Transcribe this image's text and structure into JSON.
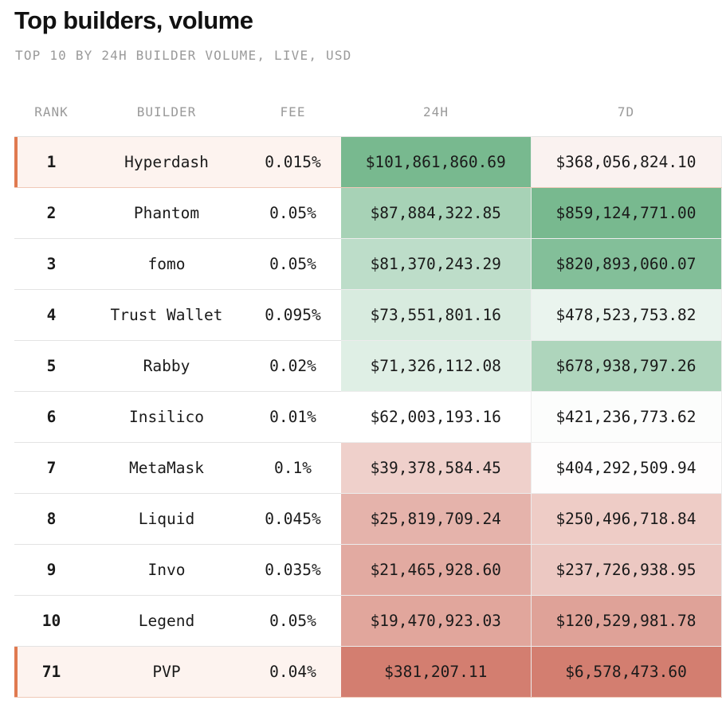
{
  "title": "Top builders, volume",
  "subtitle": "TOP 10 BY 24H BUILDER VOLUME, LIVE, USD",
  "columns": {
    "rank": "RANK",
    "builder": "BUILDER",
    "fee": "FEE",
    "vol24h": "24H",
    "vol7d": "7D"
  },
  "colors": {
    "high": "#78b98f",
    "mid": "#ffffff",
    "low": "#d37e70",
    "highlight_bg": "#fdf3ef",
    "highlight_accent": "#e07a50"
  },
  "chart_data": {
    "type": "table",
    "rows": [
      {
        "rank": "1",
        "builder": "Hyperdash",
        "fee": "0.015%",
        "vol24h": 101861860.69,
        "vol24h_label": "$101,861,860.69",
        "vol7d": 368056824.1,
        "vol7d_label": "$368,056,824.10",
        "highlight": true
      },
      {
        "rank": "2",
        "builder": "Phantom",
        "fee": "0.05%",
        "vol24h": 87884322.85,
        "vol24h_label": "$87,884,322.85",
        "vol7d": 859124771.0,
        "vol7d_label": "$859,124,771.00",
        "highlight": false
      },
      {
        "rank": "3",
        "builder": "fomo",
        "fee": "0.05%",
        "vol24h": 81370243.29,
        "vol24h_label": "$81,370,243.29",
        "vol7d": 820893060.07,
        "vol7d_label": "$820,893,060.07",
        "highlight": false
      },
      {
        "rank": "4",
        "builder": "Trust Wallet",
        "fee": "0.095%",
        "vol24h": 73551801.16,
        "vol24h_label": "$73,551,801.16",
        "vol7d": 478523753.82,
        "vol7d_label": "$478,523,753.82",
        "highlight": false
      },
      {
        "rank": "5",
        "builder": "Rabby",
        "fee": "0.02%",
        "vol24h": 71326112.08,
        "vol24h_label": "$71,326,112.08",
        "vol7d": 678938797.26,
        "vol7d_label": "$678,938,797.26",
        "highlight": false
      },
      {
        "rank": "6",
        "builder": "Insilico",
        "fee": "0.01%",
        "vol24h": 62003193.16,
        "vol24h_label": "$62,003,193.16",
        "vol7d": 421236773.62,
        "vol7d_label": "$421,236,773.62",
        "highlight": false
      },
      {
        "rank": "7",
        "builder": "MetaMask",
        "fee": "0.1%",
        "vol24h": 39378584.45,
        "vol24h_label": "$39,378,584.45",
        "vol7d": 404292509.94,
        "vol7d_label": "$404,292,509.94",
        "highlight": false
      },
      {
        "rank": "8",
        "builder": "Liquid",
        "fee": "0.045%",
        "vol24h": 25819709.24,
        "vol24h_label": "$25,819,709.24",
        "vol7d": 250496718.84,
        "vol7d_label": "$250,496,718.84",
        "highlight": false
      },
      {
        "rank": "9",
        "builder": "Invo",
        "fee": "0.035%",
        "vol24h": 21465928.6,
        "vol24h_label": "$21,465,928.60",
        "vol7d": 237726938.95,
        "vol7d_label": "$237,726,938.95",
        "highlight": false
      },
      {
        "rank": "10",
        "builder": "Legend",
        "fee": "0.05%",
        "vol24h": 19470923.03,
        "vol24h_label": "$19,470,923.03",
        "vol7d": 120529981.78,
        "vol7d_label": "$120,529,981.78",
        "highlight": false
      },
      {
        "rank": "71",
        "builder": "PVP",
        "fee": "0.04%",
        "vol24h": 381207.11,
        "vol24h_label": "$381,207.11",
        "vol7d": 6578473.6,
        "vol7d_label": "$6,578,473.60",
        "highlight": true
      }
    ]
  }
}
